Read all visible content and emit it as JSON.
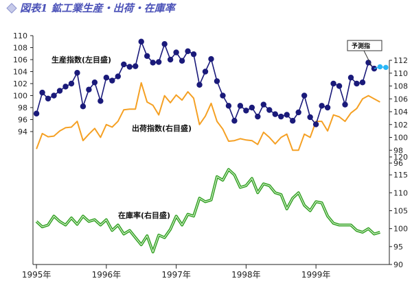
{
  "title": "図表1 鉱工業生産・出荷・在庫率",
  "title_icon": "diamond-icon",
  "colors": {
    "production": "#1a1a7a",
    "forecast": "#29b6f6",
    "shipments": "#f5a023",
    "inventory": "#2e9e1f",
    "title": "#4b52b8"
  },
  "chart_data": [
    {
      "id": "production",
      "type": "line",
      "label": "生産指数(左目盛)",
      "axis": "left-top",
      "ylim": [
        94,
        110
      ],
      "yticks": [
        94,
        96,
        98,
        100,
        102,
        104,
        106,
        108,
        110
      ],
      "x_start": 1995.0,
      "x_step": 0.08333,
      "values": [
        97.0,
        100.5,
        99.5,
        100.0,
        100.8,
        101.5,
        102.0,
        103.8,
        98.2,
        101.0,
        102.2,
        99.1,
        103.0,
        102.5,
        103.2,
        105.2,
        104.8,
        104.9,
        109.0,
        106.6,
        105.5,
        105.6,
        108.6,
        106.0,
        107.2,
        105.8,
        107.4,
        106.9,
        101.8,
        104.0,
        106.1,
        102.4,
        100.0,
        98.3,
        95.8,
        98.3,
        97.5,
        98.0,
        96.5,
        98.5,
        97.6,
        96.9,
        96.5,
        96.8,
        95.8,
        97.2,
        100.0,
        96.4,
        95.2,
        98.3,
        98.0,
        102.0,
        101.6,
        98.5,
        103.0,
        102.0,
        102.2,
        105.5,
        104.5
      ],
      "forecast_label": "予測指",
      "forecast_values": [
        104.8,
        104.7
      ]
    },
    {
      "id": "shipments",
      "type": "line",
      "label": "出荷指数(右目盛)",
      "axis": "right-top",
      "ylim": [
        96,
        112
      ],
      "yticks": [
        96,
        98,
        100,
        102,
        104,
        106,
        108,
        110,
        112
      ],
      "x_start": 1995.0,
      "x_step": 0.08333,
      "values": [
        98.2,
        100.6,
        100.1,
        100.2,
        101.0,
        101.5,
        101.6,
        102.5,
        99.5,
        100.5,
        101.4,
        100.0,
        102.0,
        101.6,
        102.5,
        104.3,
        104.4,
        104.4,
        108.5,
        105.5,
        105.0,
        103.5,
        106.5,
        105.4,
        106.6,
        105.8,
        107.1,
        106.1,
        102.0,
        103.3,
        105.3,
        102.5,
        101.3,
        99.4,
        99.5,
        99.8,
        99.6,
        99.5,
        98.9,
        100.8,
        100.0,
        99.0,
        100.0,
        100.5,
        98.0,
        98.0,
        100.5,
        100.0,
        102.5,
        102.5,
        101.0,
        103.5,
        103.2,
        102.5,
        103.8,
        104.5,
        106.0,
        106.5,
        106.0,
        105.5
      ],
      "forecast_values": []
    },
    {
      "id": "inventory",
      "type": "line",
      "label": "在庫率(右目盛)",
      "axis": "right-bottom",
      "ylim": [
        90,
        120
      ],
      "yticks": [
        90,
        95,
        100,
        105,
        110,
        115,
        120
      ],
      "x_start": 1995.0,
      "x_step": 0.08333,
      "values": [
        102.0,
        100.5,
        101.0,
        103.5,
        102.0,
        101.0,
        103.0,
        101.2,
        103.5,
        102.0,
        102.5,
        101.0,
        102.5,
        99.5,
        101.0,
        98.5,
        99.5,
        97.5,
        95.5,
        98.0,
        93.5,
        98.2,
        97.5,
        99.8,
        103.5,
        101.0,
        104.0,
        103.5,
        108.5,
        107.5,
        108.0,
        114.5,
        113.5,
        116.5,
        115.0,
        111.5,
        112.0,
        114.0,
        110.0,
        112.5,
        112.0,
        110.0,
        109.5,
        105.5,
        108.5,
        110.0,
        106.5,
        105.0,
        107.5,
        107.2,
        103.5,
        101.5,
        101.0,
        101.0,
        101.0,
        99.5,
        99.0,
        100.0,
        98.5,
        99.0
      ]
    }
  ],
  "x_axis": {
    "labels": [
      "1995年",
      "1996年",
      "1997年",
      "1998年",
      "1999年"
    ],
    "positions": [
      1995,
      1996,
      1997,
      1998,
      1999
    ],
    "xlim": [
      1994.95,
      2000.05
    ]
  },
  "grid": false
}
